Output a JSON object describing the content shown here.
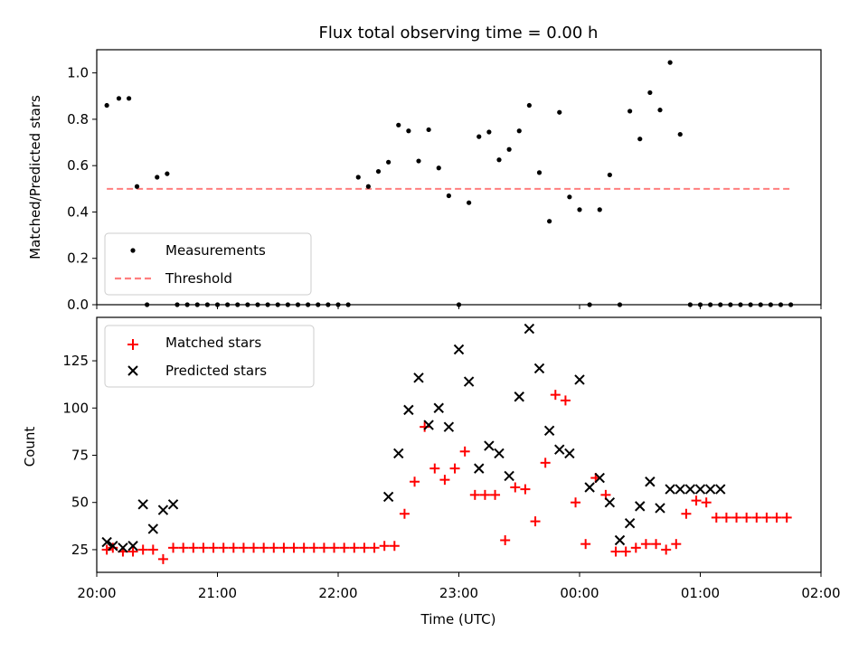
{
  "chart_data": [
    {
      "type": "scatter",
      "title": "Flux total observing time = 0.00 h",
      "xlabel": "",
      "ylabel": "Matched/Predicted stars",
      "ylim": [
        0,
        1.1
      ],
      "yticks": [
        "0.0",
        "0.2",
        "0.4",
        "0.6",
        "0.8",
        "1.0"
      ],
      "xlim": [
        "20:00",
        "02:00"
      ],
      "legend_position": "lower-left",
      "series": [
        {
          "name": "Measurements",
          "marker": "dot",
          "color": "#000000",
          "x": [
            "20:05",
            "20:11",
            "20:16",
            "20:20",
            "20:25",
            "20:30",
            "20:35",
            "20:40",
            "20:45",
            "20:50",
            "20:55",
            "21:00",
            "21:05",
            "21:10",
            "21:15",
            "21:20",
            "21:25",
            "21:30",
            "21:35",
            "21:40",
            "21:45",
            "21:50",
            "21:55",
            "22:00",
            "22:05",
            "22:10",
            "22:15",
            "22:20",
            "22:25",
            "22:30",
            "22:35",
            "22:40",
            "22:45",
            "22:50",
            "22:55",
            "23:00",
            "23:05",
            "23:10",
            "23:15",
            "23:20",
            "23:25",
            "23:30",
            "23:35",
            "23:40",
            "23:45",
            "23:50",
            "23:55",
            "00:00",
            "00:05",
            "00:10",
            "00:15",
            "00:20",
            "00:25",
            "00:30",
            "00:35",
            "00:40",
            "00:45",
            "00:50",
            "00:55",
            "01:00",
            "01:05",
            "01:10",
            "01:15",
            "01:20",
            "01:25",
            "01:30",
            "01:35",
            "01:40",
            "01:45"
          ],
          "y": [
            0.86,
            0.89,
            0.89,
            0.51,
            0.0,
            0.55,
            0.565,
            0.0,
            0.0,
            0.0,
            0.0,
            0.0,
            0.0,
            0.0,
            0.0,
            0.0,
            0.0,
            0.0,
            0.0,
            0.0,
            0.0,
            0.0,
            0.0,
            0.0,
            0.0,
            0.55,
            0.51,
            0.575,
            0.615,
            0.775,
            0.75,
            0.62,
            0.755,
            0.59,
            0.47,
            0.0,
            0.44,
            0.725,
            0.745,
            0.625,
            0.67,
            0.75,
            0.86,
            0.57,
            0.36,
            0.83,
            0.465,
            0.41,
            0.0,
            0.41,
            0.56,
            0.0,
            0.835,
            0.715,
            0.915,
            0.84,
            1.045,
            0.735,
            0.0,
            0.0,
            0.0,
            0.0,
            0.0,
            0.0,
            0.0,
            0.0,
            0.0,
            0.0,
            0.0
          ]
        },
        {
          "name": "Threshold",
          "marker": "dashed-line",
          "color": "#ff7f7f",
          "x": [
            "20:05",
            "01:45"
          ],
          "y": [
            0.5,
            0.5
          ]
        }
      ]
    },
    {
      "type": "scatter",
      "title": "",
      "xlabel": "Time (UTC)",
      "ylabel": "Count",
      "ylim": [
        13,
        148
      ],
      "yticks": [
        "25",
        "50",
        "75",
        "100",
        "125"
      ],
      "xticks": [
        "20:00",
        "21:00",
        "22:00",
        "23:00",
        "00:00",
        "01:00",
        "02:00"
      ],
      "xlim": [
        "20:00",
        "02:00"
      ],
      "legend_position": "upper-left",
      "series": [
        {
          "name": "Matched stars",
          "marker": "plus",
          "color": "#ff0000",
          "x": [
            "20:05",
            "20:08",
            "20:13",
            "20:18",
            "20:23",
            "20:28",
            "20:33",
            "20:38",
            "20:43",
            "20:48",
            "20:53",
            "20:58",
            "21:03",
            "21:08",
            "21:13",
            "21:18",
            "21:23",
            "21:28",
            "21:33",
            "21:38",
            "21:43",
            "21:48",
            "21:53",
            "21:58",
            "22:03",
            "22:08",
            "22:13",
            "22:18",
            "22:23",
            "22:28",
            "22:33",
            "22:38",
            "22:43",
            "22:48",
            "22:53",
            "22:58",
            "23:03",
            "23:08",
            "23:13",
            "23:18",
            "23:23",
            "23:28",
            "23:33",
            "23:38",
            "23:43",
            "23:48",
            "23:53",
            "23:58",
            "00:03",
            "00:08",
            "00:13",
            "00:18",
            "00:23",
            "00:28",
            "00:33",
            "00:38",
            "00:43",
            "00:48",
            "00:53",
            "00:58",
            "01:03",
            "01:08",
            "01:13",
            "01:18",
            "01:23",
            "01:28",
            "01:33",
            "01:38",
            "01:43"
          ],
          "y": [
            25,
            26,
            24,
            24,
            25,
            25,
            20,
            26,
            26,
            26,
            26,
            26,
            26,
            26,
            26,
            26,
            26,
            26,
            26,
            26,
            26,
            26,
            26,
            26,
            26,
            26,
            26,
            26,
            27,
            27,
            44,
            61,
            90,
            68,
            62,
            68,
            77,
            54,
            54,
            54,
            30,
            58,
            57,
            40,
            71,
            107,
            104,
            50,
            28,
            63,
            54,
            24,
            24,
            26,
            28,
            28,
            25,
            28,
            44,
            51,
            50,
            42,
            42,
            42,
            42,
            42,
            42,
            42,
            42
          ]
        },
        {
          "name": "Predicted stars",
          "marker": "x",
          "color": "#000000",
          "x": [
            "20:05",
            "20:08",
            "20:13",
            "20:18",
            "20:23",
            "20:28",
            "20:33",
            "20:38",
            "22:25",
            "22:30",
            "22:35",
            "22:40",
            "22:45",
            "22:50",
            "22:55",
            "23:00",
            "23:05",
            "23:10",
            "23:15",
            "23:20",
            "23:25",
            "23:30",
            "23:35",
            "23:40",
            "23:45",
            "23:50",
            "23:55",
            "00:00",
            "00:05",
            "00:10",
            "00:15",
            "00:20",
            "00:25",
            "00:30",
            "00:35",
            "00:40",
            "00:45",
            "00:50",
            "00:55",
            "01:00",
            "01:05",
            "01:10"
          ],
          "y": [
            29,
            27,
            26,
            27,
            49,
            36,
            46,
            49,
            53,
            76,
            99,
            116,
            91,
            100,
            90,
            131,
            114,
            68,
            80,
            76,
            64,
            106,
            142,
            121,
            88,
            78,
            76,
            115,
            58,
            63,
            50,
            30,
            39,
            48,
            61,
            47,
            57,
            57,
            57,
            57,
            57,
            57
          ]
        }
      ]
    }
  ]
}
